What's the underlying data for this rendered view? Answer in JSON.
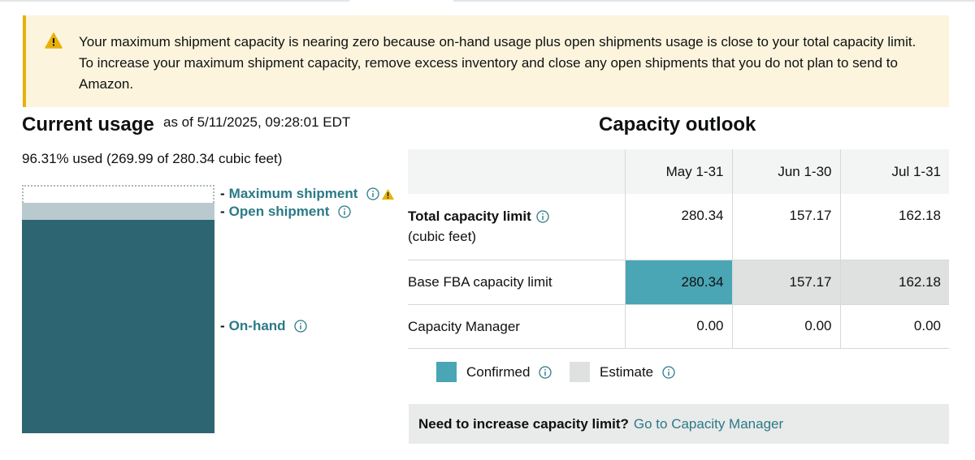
{
  "alert": {
    "icon": "warning-icon",
    "message": "Your maximum shipment capacity is nearing zero because on-hand usage plus open shipments usage is close to your total capacity limit. To increase your maximum shipment capacity, remove excess inventory and close any open shipments that you do not plan to send to Amazon."
  },
  "current_usage": {
    "title": "Current usage",
    "as_of": "as of 5/11/2025, 09:28:01 EDT",
    "used_text": "96.31% used (269.99 of 280.34 cubic feet)",
    "legend": {
      "max_shipment": "Maximum shipment",
      "open_shipment": "Open shipment",
      "on_hand": "On-hand"
    }
  },
  "capacity_outlook": {
    "title": "Capacity outlook",
    "columns": [
      "May 1-31",
      "Jun 1-30",
      "Jul 1-31"
    ],
    "rows": {
      "total": {
        "label": "Total capacity limit",
        "sublabel": "(cubic feet)",
        "values": [
          "280.34",
          "157.17",
          "162.18"
        ]
      },
      "base": {
        "label": "Base FBA capacity limit",
        "values": [
          "280.34",
          "157.17",
          "162.18"
        ]
      },
      "manager": {
        "label": "Capacity Manager",
        "values": [
          "0.00",
          "0.00",
          "0.00"
        ]
      }
    },
    "key": {
      "confirmed": "Confirmed",
      "estimate": "Estimate"
    },
    "cta": {
      "question": "Need to increase capacity limit?",
      "link": "Go to Capacity Manager"
    }
  },
  "colors": {
    "on_hand": "#2d6572",
    "open_shipment": "#b9cacf",
    "confirmed": "#4aa5b5",
    "estimate": "#dfe1e1",
    "link": "#2b7a87",
    "alert_bg": "#fcf4dd",
    "alert_border": "#e7b10a"
  }
}
